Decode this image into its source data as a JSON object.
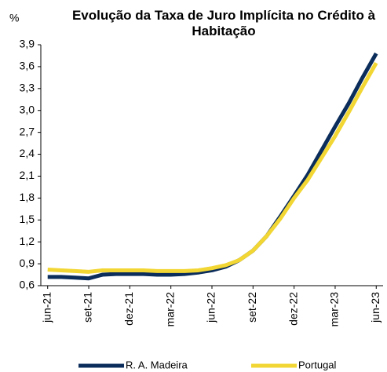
{
  "chart_data": {
    "type": "line",
    "title": "Evolução da Taxa de Juro Implícita no Crédito à Habitação",
    "y_label": "%",
    "categories": [
      "jun-21",
      null,
      null,
      "set-21",
      null,
      null,
      "dez-21",
      null,
      null,
      "mar-22",
      null,
      null,
      "jun-22",
      null,
      null,
      "set-22",
      null,
      null,
      "dez-22",
      null,
      null,
      "mar-23",
      null,
      null,
      "jun-23"
    ],
    "series": [
      {
        "name": "R. A. Madeira",
        "color": "#0b2d5b",
        "values": [
          0.72,
          0.72,
          0.71,
          0.7,
          0.75,
          0.76,
          0.76,
          0.76,
          0.75,
          0.75,
          0.76,
          0.78,
          0.81,
          0.86,
          0.95,
          1.08,
          1.28,
          1.55,
          1.83,
          2.12,
          2.45,
          2.78,
          3.1,
          3.45,
          3.78
        ]
      },
      {
        "name": "Portugal",
        "color": "#f2d633",
        "values": [
          0.82,
          0.81,
          0.8,
          0.79,
          0.81,
          0.81,
          0.81,
          0.81,
          0.8,
          0.8,
          0.8,
          0.81,
          0.84,
          0.88,
          0.95,
          1.08,
          1.28,
          1.52,
          1.8,
          2.05,
          2.35,
          2.65,
          2.98,
          3.32,
          3.65
        ]
      }
    ],
    "ylim": [
      0.6,
      3.9
    ],
    "yticks": [
      {
        "value": 0.6,
        "label": "0,6"
      },
      {
        "value": 0.9,
        "label": "0,9"
      },
      {
        "value": 1.2,
        "label": "1,2"
      },
      {
        "value": 1.5,
        "label": "1,5"
      },
      {
        "value": 1.8,
        "label": "1,8"
      },
      {
        "value": 2.1,
        "label": "2,1"
      },
      {
        "value": 2.4,
        "label": "2,4"
      },
      {
        "value": 2.7,
        "label": "2,7"
      },
      {
        "value": 3.0,
        "label": "3,0"
      },
      {
        "value": 3.3,
        "label": "3,3"
      },
      {
        "value": 3.6,
        "label": "3,6"
      },
      {
        "value": 3.9,
        "label": "3,9"
      }
    ],
    "grid": false,
    "legend": "bottom"
  }
}
